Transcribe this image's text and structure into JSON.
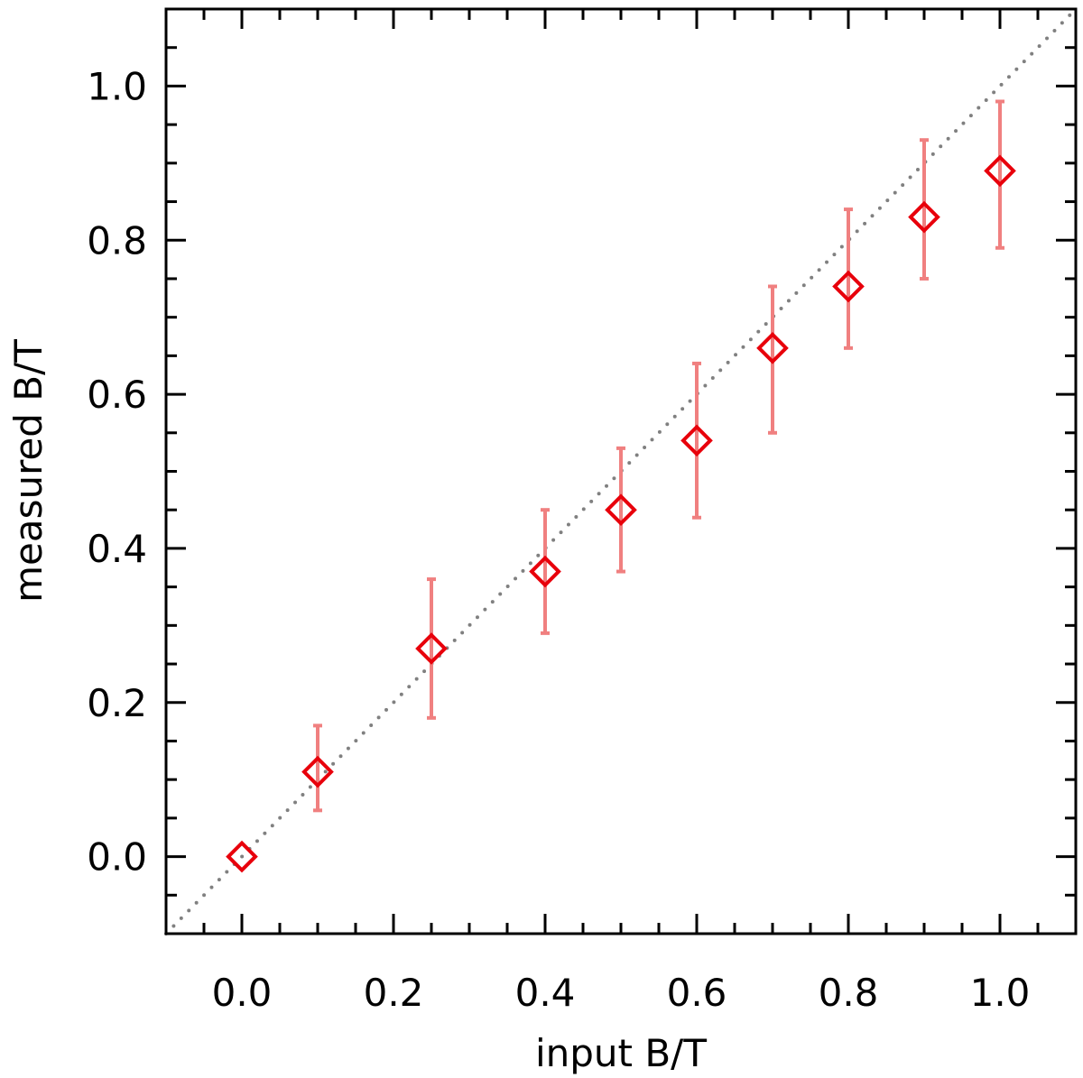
{
  "chart_data": {
    "type": "scatter",
    "xlabel": "input B/T",
    "ylabel": "measured B/T",
    "xlim": [
      -0.1,
      1.1
    ],
    "ylim": [
      -0.1,
      1.1
    ],
    "x_ticks": [
      "0.0",
      "0.2",
      "0.4",
      "0.6",
      "0.8",
      "1.0"
    ],
    "y_ticks": [
      "0.0",
      "0.2",
      "0.4",
      "0.6",
      "0.8",
      "1.0"
    ],
    "x_tick_values": [
      0.0,
      0.2,
      0.4,
      0.6,
      0.8,
      1.0
    ],
    "y_tick_values": [
      0.0,
      0.2,
      0.4,
      0.6,
      0.8,
      1.0
    ],
    "minor_tick_step": 0.05,
    "grid": false,
    "reference_line": {
      "style": "dotted",
      "color": "#808080",
      "slope": 1,
      "intercept": 0
    },
    "series": [
      {
        "marker": "diamond-open",
        "color": "#e8000b",
        "errorbar_color": "#f08080",
        "points": [
          {
            "x": 0.0,
            "y": 0.0,
            "ylow": 0.0,
            "yhigh": 0.0
          },
          {
            "x": 0.1,
            "y": 0.11,
            "ylow": 0.06,
            "yhigh": 0.17
          },
          {
            "x": 0.25,
            "y": 0.27,
            "ylow": 0.18,
            "yhigh": 0.36
          },
          {
            "x": 0.4,
            "y": 0.37,
            "ylow": 0.29,
            "yhigh": 0.45
          },
          {
            "x": 0.5,
            "y": 0.45,
            "ylow": 0.37,
            "yhigh": 0.53
          },
          {
            "x": 0.6,
            "y": 0.54,
            "ylow": 0.44,
            "yhigh": 0.64
          },
          {
            "x": 0.7,
            "y": 0.66,
            "ylow": 0.55,
            "yhigh": 0.74
          },
          {
            "x": 0.8,
            "y": 0.74,
            "ylow": 0.66,
            "yhigh": 0.84
          },
          {
            "x": 0.9,
            "y": 0.83,
            "ylow": 0.75,
            "yhigh": 0.93
          },
          {
            "x": 1.0,
            "y": 0.89,
            "ylow": 0.79,
            "yhigh": 0.98
          }
        ]
      }
    ]
  }
}
